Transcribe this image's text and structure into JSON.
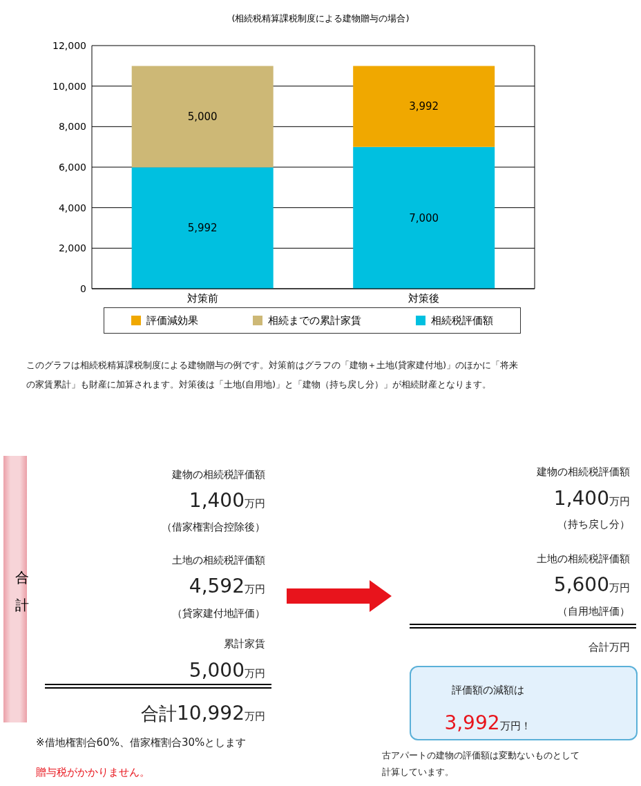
{
  "chart_data": {
    "type": "bar",
    "title": "(相続税精算課税制度による建物贈与の場合)",
    "categories": [
      "対策前",
      "対策後"
    ],
    "stacked": true,
    "series": [
      {
        "name": "相続税評価額",
        "color": "#00c0e0",
        "values": [
          5992,
          7000
        ],
        "value_labels": [
          "5,992",
          "7,000"
        ]
      },
      {
        "name": "相続までの累計家賃",
        "color": "#cdb876",
        "values": [
          5000,
          null
        ],
        "value_labels": [
          "5,000",
          null
        ]
      },
      {
        "name": "評価減効果",
        "color": "#f0a800",
        "values": [
          null,
          3992
        ],
        "value_labels": [
          null,
          "3,992"
        ]
      }
    ],
    "ylim": [
      0,
      12000
    ],
    "yticks": [
      0,
      {
        "value": 2000,
        "label": "2,000"
      },
      {
        "value": 4000,
        "label": "4,000"
      },
      {
        "value": 6000,
        "label": "6,000"
      },
      {
        "value": 8000,
        "label": "8,000"
      },
      {
        "value": 10000,
        "label": "10,000"
      },
      {
        "value": 12000,
        "label": "12,000"
      }
    ],
    "grid": "y",
    "legend": "bottom",
    "annotations": [
      "このグラフは相続税精算課税制度による建物贈与の例です。対策前はグラフの「建物＋土地(貸家建付地)」のほかに「将来の家賃累計」も財産に加算されます。対策後は「土地(自用地)」と「建物（持ち戻し分）」が相続財産となります。",
      "建物の相続税評価額",
      "1,400万円",
      "（借家権割合控除後）",
      "土地の相続税評価額",
      "4,592万円",
      "（貸家建付地評価）",
      "累計家賃",
      "5,000万円",
      "合計10,992万円",
      "※借地権割合60%、借家権割合30%とします",
      "贈与税がかかりません。",
      "建物の相続税評価額",
      "1,400万円",
      "（持ち戻し分）",
      "土地の相続税評価額",
      "5,600万円",
      "（自用地評価）",
      "合計万円",
      "評価額の減額は",
      "3,992万円！",
      "古アパートの建物の評価額は変動ないものとして計算しています。",
      "合計"
    ]
  }
}
